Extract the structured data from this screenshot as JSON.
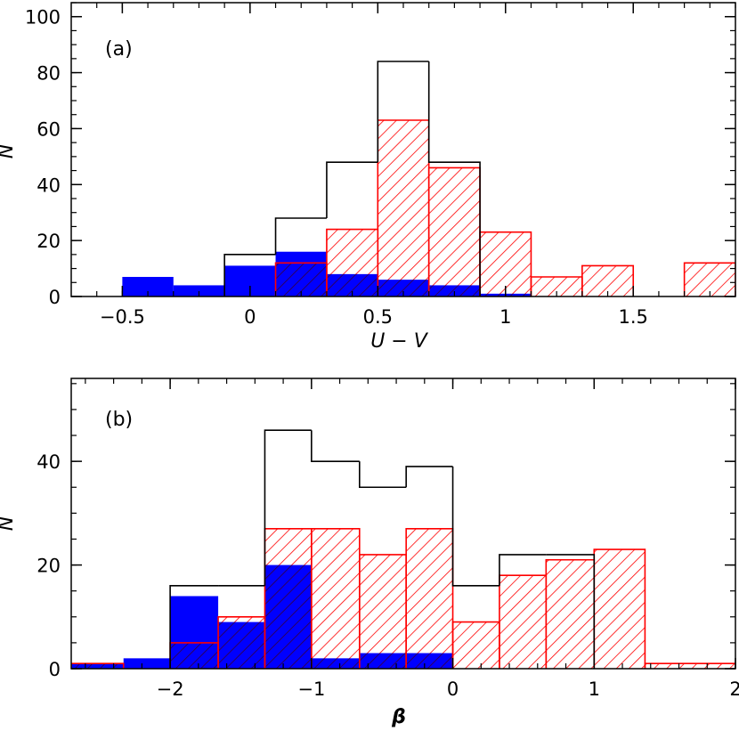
{
  "chart_data": [
    {
      "type": "histogram",
      "panel_label": "(a)",
      "xlabel": "U − V",
      "ylabel": "N",
      "xlim": [
        -0.7,
        1.9
      ],
      "ylim": [
        0,
        105
      ],
      "x_ticks": [
        -0.5,
        0,
        0.5,
        1,
        1.5
      ],
      "x_tick_labels": [
        "−0.5",
        "0",
        "0.5",
        "1",
        "1.5"
      ],
      "y_ticks": [
        0,
        20,
        40,
        60,
        80,
        100
      ],
      "y_tick_labels": [
        "0",
        "20",
        "40",
        "60",
        "80",
        "100"
      ],
      "series": [
        {
          "style": "outline",
          "color": "#000000",
          "bins": [
            {
              "x0": -0.1,
              "x1": 0.1,
              "value": 15
            },
            {
              "x0": 0.1,
              "x1": 0.3,
              "value": 28
            },
            {
              "x0": 0.3,
              "x1": 0.5,
              "value": 48
            },
            {
              "x0": 0.5,
              "x1": 0.7,
              "value": 84
            },
            {
              "x0": 0.7,
              "x1": 0.9,
              "value": 48
            }
          ]
        },
        {
          "style": "hatched",
          "color": "#ff0000",
          "bins": [
            {
              "x0": 0.1,
              "x1": 0.3,
              "value": 12
            },
            {
              "x0": 0.3,
              "x1": 0.5,
              "value": 24
            },
            {
              "x0": 0.5,
              "x1": 0.7,
              "value": 63
            },
            {
              "x0": 0.7,
              "x1": 0.9,
              "value": 46
            },
            {
              "x0": 0.9,
              "x1": 1.1,
              "value": 23
            },
            {
              "x0": 1.1,
              "x1": 1.3,
              "value": 7
            },
            {
              "x0": 1.3,
              "x1": 1.5,
              "value": 11
            },
            {
              "x0": 1.7,
              "x1": 1.9,
              "value": 12
            }
          ]
        },
        {
          "style": "filled",
          "color": "#0000ff",
          "bins": [
            {
              "x0": -0.5,
              "x1": -0.3,
              "value": 7
            },
            {
              "x0": -0.3,
              "x1": -0.1,
              "value": 4
            },
            {
              "x0": -0.1,
              "x1": 0.1,
              "value": 11
            },
            {
              "x0": 0.1,
              "x1": 0.3,
              "value": 16
            },
            {
              "x0": 0.3,
              "x1": 0.5,
              "value": 8
            },
            {
              "x0": 0.5,
              "x1": 0.7,
              "value": 6
            },
            {
              "x0": 0.7,
              "x1": 0.9,
              "value": 4
            },
            {
              "x0": 0.9,
              "x1": 1.1,
              "value": 1
            }
          ]
        }
      ]
    },
    {
      "type": "histogram",
      "panel_label": "(b)",
      "xlabel": "β",
      "ylabel": "N",
      "xlim": [
        -2.7,
        2.0
      ],
      "ylim": [
        0,
        56
      ],
      "x_ticks": [
        -2,
        -1,
        0,
        1,
        2
      ],
      "x_tick_labels": [
        "−2",
        "−1",
        "0",
        "1",
        "2"
      ],
      "y_ticks": [
        0,
        20,
        40
      ],
      "y_tick_labels": [
        "0",
        "20",
        "40"
      ],
      "series": [
        {
          "style": "outline",
          "color": "#000000",
          "bins": [
            {
              "x0": -2.0,
              "x1": -1.66,
              "value": 16
            },
            {
              "x0": -1.66,
              "x1": -1.33,
              "value": 16
            },
            {
              "x0": -1.33,
              "x1": -1.0,
              "value": 46
            },
            {
              "x0": -1.0,
              "x1": -0.66,
              "value": 40
            },
            {
              "x0": -0.66,
              "x1": -0.33,
              "value": 35
            },
            {
              "x0": -0.33,
              "x1": 0.0,
              "value": 39
            },
            {
              "x0": 0.0,
              "x1": 0.33,
              "value": 16
            },
            {
              "x0": 0.33,
              "x1": 0.66,
              "value": 22
            },
            {
              "x0": 0.66,
              "x1": 1.0,
              "value": 22
            }
          ]
        },
        {
          "style": "hatched",
          "color": "#ff0000",
          "bins": [
            {
              "x0": -2.7,
              "x1": -2.33,
              "value": 1
            },
            {
              "x0": -2.0,
              "x1": -1.66,
              "value": 5
            },
            {
              "x0": -1.66,
              "x1": -1.33,
              "value": 10
            },
            {
              "x0": -1.33,
              "x1": -1.0,
              "value": 27
            },
            {
              "x0": -1.0,
              "x1": -0.66,
              "value": 27
            },
            {
              "x0": -0.66,
              "x1": -0.33,
              "value": 22
            },
            {
              "x0": -0.33,
              "x1": 0.0,
              "value": 27
            },
            {
              "x0": 0.0,
              "x1": 0.33,
              "value": 9
            },
            {
              "x0": 0.33,
              "x1": 0.66,
              "value": 18
            },
            {
              "x0": 0.66,
              "x1": 1.0,
              "value": 21
            },
            {
              "x0": 1.0,
              "x1": 1.36,
              "value": 23
            },
            {
              "x0": 1.36,
              "x1": 2.0,
              "value": 1
            }
          ]
        },
        {
          "style": "filled",
          "color": "#0000ff",
          "bins": [
            {
              "x0": -2.7,
              "x1": -2.33,
              "value": 1
            },
            {
              "x0": -2.33,
              "x1": -2.0,
              "value": 2
            },
            {
              "x0": -2.0,
              "x1": -1.66,
              "value": 14
            },
            {
              "x0": -1.66,
              "x1": -1.33,
              "value": 9
            },
            {
              "x0": -1.33,
              "x1": -1.0,
              "value": 20
            },
            {
              "x0": -1.0,
              "x1": -0.66,
              "value": 2
            },
            {
              "x0": -0.66,
              "x1": -0.33,
              "value": 3
            },
            {
              "x0": -0.33,
              "x1": 0.0,
              "value": 3
            }
          ]
        }
      ]
    }
  ]
}
